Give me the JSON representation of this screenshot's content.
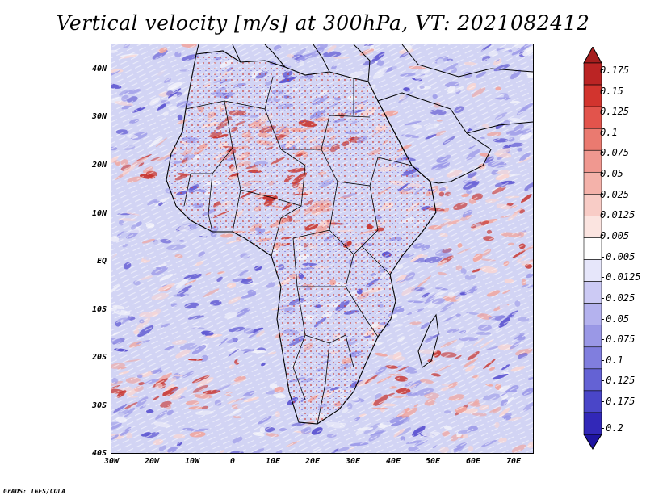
{
  "title": "Vertical velocity [m/s] at 300hPa, VT: 2021082412",
  "credit": "GrADS: IGES/COLA",
  "map": {
    "lat_labels": [
      "40N",
      "30N",
      "20N",
      "10N",
      "EQ",
      "10S",
      "20S",
      "30S",
      "40S"
    ],
    "lon_labels": [
      "30W",
      "20W",
      "10W",
      "0",
      "10E",
      "20E",
      "30E",
      "40E",
      "50E",
      "60E",
      "70E"
    ],
    "lat_range": [
      -40,
      45
    ],
    "lon_range": [
      -30,
      75
    ],
    "colors": {
      "strong_up": "#c8342e",
      "up": "#f0a6a0",
      "light_up": "#f8d6d4",
      "neutral": "#f2f2fa",
      "light_down": "#d2d4f4",
      "down": "#9c9ae8",
      "strong_down": "#5a52d0"
    }
  },
  "colorbar": {
    "labels": [
      "0.175",
      "0.15",
      "0.125",
      "0.1",
      "0.075",
      "0.05",
      "0.025",
      "0.0125",
      "0.005",
      "-0.005",
      "-0.0125",
      "-0.025",
      "-0.05",
      "-0.075",
      "-0.1",
      "-0.125",
      "-0.175",
      "-0.2"
    ],
    "colors": [
      "#a51e1e",
      "#bb2424",
      "#d2342e",
      "#e2544c",
      "#ea7a70",
      "#f09890",
      "#f4b2aa",
      "#f8ccc6",
      "#fbe4e0",
      "#ffffff",
      "#e6e6fa",
      "#cccaf4",
      "#b4b2ee",
      "#9a98e6",
      "#807ede",
      "#6462d4",
      "#4a46c8",
      "#3228b8",
      "#1e14a0"
    ]
  }
}
